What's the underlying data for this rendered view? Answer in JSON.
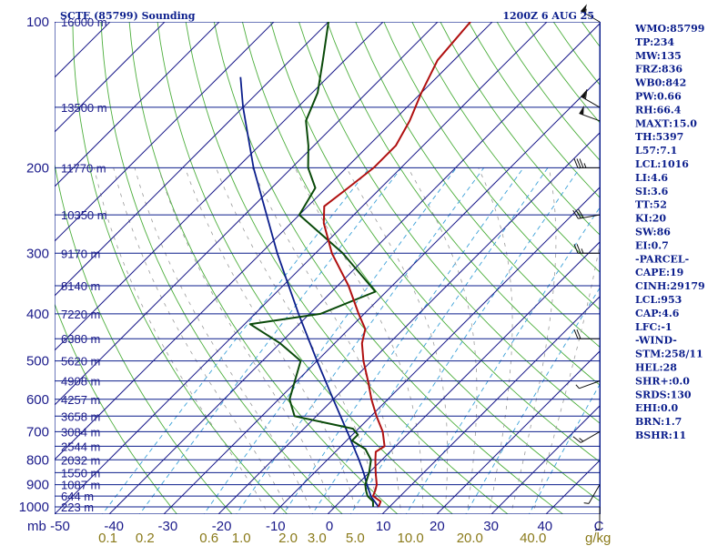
{
  "chart_data": {
    "type": "line",
    "title": "SCTE (85799) Sounding",
    "time_label": "1200Z  6 AUG 25",
    "xlabel_unit": "g/kg",
    "pressure_ticks": [
      100,
      200,
      300,
      400,
      500,
      600,
      700,
      800,
      900,
      1000
    ],
    "temp_ticks": [
      "-50",
      "-40",
      "-30",
      "-20",
      "-10",
      "0",
      "10",
      "20",
      "30",
      "40",
      "C"
    ],
    "corner_label": "mb",
    "mixing_ratio_labels": [
      "0.1",
      "0.2",
      "0.6",
      "1.0",
      "2.0",
      "3.0",
      "5.0",
      "10.0",
      "20.0",
      "40.0"
    ],
    "height_labels": [
      {
        "p": 100,
        "label": "16000 m"
      },
      {
        "p": 150,
        "label": "13500 m"
      },
      {
        "p": 200,
        "label": "11770 m"
      },
      {
        "p": 250,
        "label": "10350 m"
      },
      {
        "p": 300,
        "label": "9170 m"
      },
      {
        "p": 350,
        "label": "8140 m"
      },
      {
        "p": 400,
        "label": "7220 m"
      },
      {
        "p": 450,
        "label": "6380 m"
      },
      {
        "p": 500,
        "label": "5620 m"
      },
      {
        "p": 550,
        "label": "4908 m"
      },
      {
        "p": 600,
        "label": "4257 m"
      },
      {
        "p": 650,
        "label": "3658 m"
      },
      {
        "p": 700,
        "label": "3084 m"
      },
      {
        "p": 750,
        "label": "2544 m"
      },
      {
        "p": 800,
        "label": "2032 m"
      },
      {
        "p": 850,
        "label": "1550 m"
      },
      {
        "p": 900,
        "label": "1087 m"
      },
      {
        "p": 950,
        "label": "644 m"
      },
      {
        "p": 1000,
        "label": "223 m"
      }
    ],
    "temperature": [
      {
        "p": 1000,
        "t": 8.0
      },
      {
        "p": 975,
        "t": 7.4
      },
      {
        "p": 950,
        "t": 5.0
      },
      {
        "p": 925,
        "t": 4.4
      },
      {
        "p": 900,
        "t": 3.6
      },
      {
        "p": 850,
        "t": 1.2
      },
      {
        "p": 800,
        "t": -1.2
      },
      {
        "p": 770,
        "t": -2.6
      },
      {
        "p": 750,
        "t": -2.0
      },
      {
        "p": 700,
        "t": -5.0
      },
      {
        "p": 650,
        "t": -9.0
      },
      {
        "p": 600,
        "t": -13.0
      },
      {
        "p": 550,
        "t": -17.0
      },
      {
        "p": 500,
        "t": -21.5
      },
      {
        "p": 460,
        "t": -25.0
      },
      {
        "p": 430,
        "t": -27.0
      },
      {
        "p": 400,
        "t": -31.0
      },
      {
        "p": 350,
        "t": -38.0
      },
      {
        "p": 300,
        "t": -47.0
      },
      {
        "p": 260,
        "t": -54.0
      },
      {
        "p": 240,
        "t": -57.0
      },
      {
        "p": 220,
        "t": -56.0
      },
      {
        "p": 200,
        "t": -55.0
      },
      {
        "p": 180,
        "t": -55.0
      },
      {
        "p": 160,
        "t": -57.0
      },
      {
        "p": 140,
        "t": -60.0
      },
      {
        "p": 120,
        "t": -63.0
      },
      {
        "p": 100,
        "t": -64.0
      }
    ],
    "dewpoint": [
      {
        "p": 1000,
        "t": 7.0
      },
      {
        "p": 975,
        "t": 6.0
      },
      {
        "p": 950,
        "t": 4.0
      },
      {
        "p": 925,
        "t": 2.7
      },
      {
        "p": 900,
        "t": 1.5
      },
      {
        "p": 850,
        "t": 0.0
      },
      {
        "p": 800,
        "t": -2.0
      },
      {
        "p": 760,
        "t": -5.0
      },
      {
        "p": 730,
        "t": -9.0
      },
      {
        "p": 710,
        "t": -9.0
      },
      {
        "p": 690,
        "t": -11.0
      },
      {
        "p": 650,
        "t": -24.0
      },
      {
        "p": 600,
        "t": -28.0
      },
      {
        "p": 500,
        "t": -33.0
      },
      {
        "p": 460,
        "t": -40.0
      },
      {
        "p": 420,
        "t": -49.0
      },
      {
        "p": 400,
        "t": -38.0
      },
      {
        "p": 360,
        "t": -32.0
      },
      {
        "p": 300,
        "t": -45.0
      },
      {
        "p": 250,
        "t": -60.0
      },
      {
        "p": 220,
        "t": -62.0
      },
      {
        "p": 200,
        "t": -67.0
      },
      {
        "p": 180,
        "t": -71.0
      },
      {
        "p": 160,
        "t": -76.0
      },
      {
        "p": 140,
        "t": -79.0
      },
      {
        "p": 120,
        "t": -84.0
      },
      {
        "p": 100,
        "t": -90.0
      }
    ],
    "parcel_path": [
      {
        "p": 1000,
        "t": 8.0
      },
      {
        "p": 953,
        "t": 4.8
      },
      {
        "p": 900,
        "t": 1.8
      },
      {
        "p": 850,
        "t": -1.0
      },
      {
        "p": 800,
        "t": -4.2
      },
      {
        "p": 700,
        "t": -11.5
      },
      {
        "p": 600,
        "t": -20.0
      },
      {
        "p": 500,
        "t": -30.0
      },
      {
        "p": 400,
        "t": -42.0
      },
      {
        "p": 300,
        "t": -57.0
      },
      {
        "p": 200,
        "t": -77.0
      },
      {
        "p": 150,
        "t": -90.0
      },
      {
        "p": 130,
        "t": -96.0
      }
    ],
    "colors": {
      "isobar": "#0b1e8c",
      "isotherm": "#1a1a8a",
      "dry_adiabat": "#4cae3c",
      "moist_adiabat": "#9a9a9a",
      "mixing_ratio": "#3aa0d8",
      "temperature": "#b01010",
      "dewpoint": "#0a4a0a",
      "parcel": "#0b1e8c",
      "text": "#0b1e8c"
    }
  },
  "indices": [
    "WMO:85799",
    "TP:234",
    "MW:135",
    "FRZ:836",
    "WB0:842",
    "PW:0.66",
    "RH:66.4",
    "MAXT:15.0",
    "TH:5397",
    "L57:7.1",
    "LCL:1016",
    "LI:4.6",
    "SI:3.6",
    "TT:52",
    "KI:20",
    "SW:86",
    "EI:0.7",
    "-PARCEL-",
    "CAPE:19",
    "CINH:29179",
    "LCL:953",
    "CAP:4.6",
    "LFC:-1",
    "-WIND-",
    "STM:258/11",
    "HEL:28",
    "SHR+:0.0",
    "SRDS:130",
    "EHI:0.0",
    "BRN:1.7",
    "BSHR:11"
  ],
  "wind_barbs": [
    {
      "p": 100,
      "dir": 300,
      "spd": 55
    },
    {
      "p": 150,
      "dir": 300,
      "spd": 60
    },
    {
      "p": 160,
      "dir": 290,
      "spd": 50
    },
    {
      "p": 200,
      "dir": 270,
      "spd": 35
    },
    {
      "p": 250,
      "dir": 260,
      "spd": 30
    },
    {
      "p": 300,
      "dir": 270,
      "spd": 25
    },
    {
      "p": 450,
      "dir": 270,
      "spd": 20
    },
    {
      "p": 550,
      "dir": 250,
      "spd": 5
    },
    {
      "p": 700,
      "dir": 240,
      "spd": 15
    },
    {
      "p": 900,
      "dir": 210,
      "spd": 5
    },
    {
      "p": 1000,
      "dir": 180,
      "spd": 5
    }
  ]
}
